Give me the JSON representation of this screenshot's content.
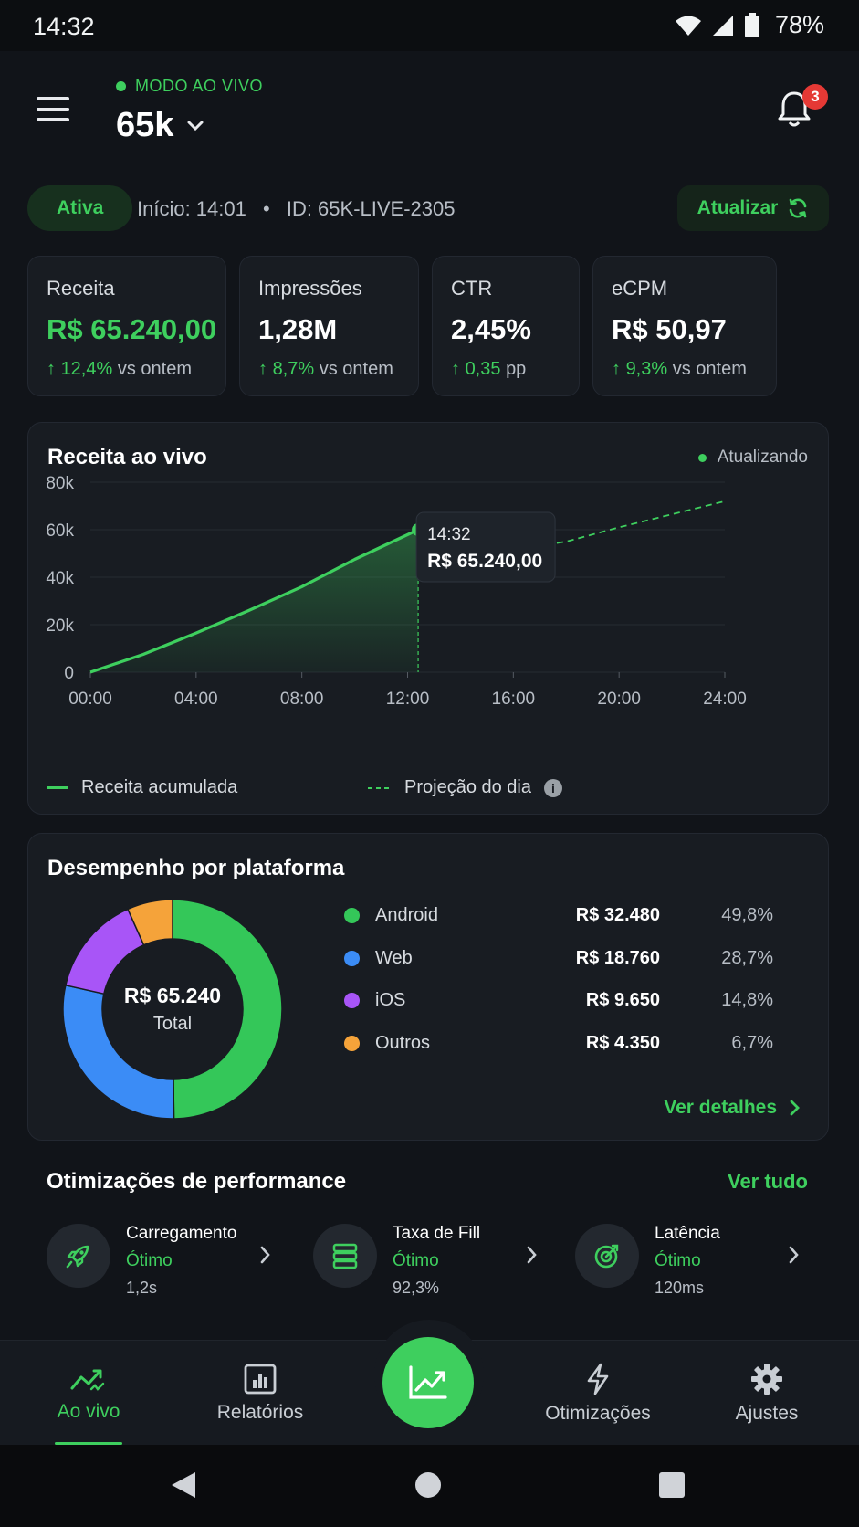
{
  "status_bar": {
    "time": "14:32",
    "battery": "78%"
  },
  "header": {
    "mode": "MODO AO VIVO",
    "title": "65k",
    "notifications": "3"
  },
  "session": {
    "status": "Ativa",
    "start": "Início: 14:01",
    "separator": "•",
    "id": "ID: 65K-LIVE-2305",
    "refresh": "Atualizar"
  },
  "kpis": [
    {
      "label": "Receita",
      "value": "R$ 65.240,00",
      "delta": "12,4%",
      "delta_suffix": "vs ontem"
    },
    {
      "label": "Impressões",
      "value": "1,28M",
      "delta": "8,7%",
      "delta_suffix": "vs ontem"
    },
    {
      "label": "CTR",
      "value": "2,45%",
      "delta": "0,35",
      "delta_suffix": "pp"
    },
    {
      "label": "eCPM",
      "value": "R$ 50,97",
      "delta": "9,3%",
      "delta_suffix": "vs ontem"
    }
  ],
  "live_chart": {
    "title": "Receita ao vivo",
    "status": "Atualizando",
    "tooltip": {
      "time": "14:32",
      "value": "R$ 65.240,00"
    },
    "legend_actual": "Receita acumulada",
    "legend_projection": "Projeção do dia"
  },
  "chart_data": {
    "type": "line",
    "y_ticks": [
      "0",
      "20k",
      "40k",
      "60k",
      "80k"
    ],
    "x_ticks": [
      "00:00",
      "04:00",
      "08:00",
      "12:00",
      "16:00",
      "20:00",
      "24:00"
    ],
    "ylim": [
      0,
      80000
    ],
    "xlim": [
      0,
      24
    ],
    "series": [
      {
        "name": "Receita acumulada",
        "x": [
          0,
          2,
          4,
          6,
          8,
          10,
          12.4
        ],
        "y": [
          0,
          7500,
          16500,
          26000,
          36000,
          47500,
          60000
        ]
      },
      {
        "name": "Projeção do dia",
        "x": [
          12.4,
          14,
          16,
          18,
          20,
          22,
          24
        ],
        "y": [
          60000,
          53000,
          51500,
          55000,
          61000,
          66500,
          72000
        ]
      }
    ],
    "colors": {
      "actual": "#3ecf5e",
      "projection": "#3ecf5e"
    }
  },
  "platforms": {
    "title": "Desempenho por plataforma",
    "total_value": "R$ 65.240",
    "total_label": "Total",
    "items": [
      {
        "name": "Android",
        "value": "R$ 32.480",
        "pct": "49,8%",
        "share": 49.8,
        "color": "#34c759"
      },
      {
        "name": "Web",
        "value": "R$ 18.760",
        "pct": "28,7%",
        "share": 28.7,
        "color": "#3b8cf6"
      },
      {
        "name": "iOS",
        "value": "R$ 9.650",
        "pct": "14,8%",
        "share": 14.8,
        "color": "#a855f7"
      },
      {
        "name": "Outros",
        "value": "R$ 4.350",
        "pct": "6,7%",
        "share": 6.7,
        "color": "#f5a33a"
      }
    ],
    "details": "Ver detalhes"
  },
  "optimizations": {
    "title": "Otimizações de performance",
    "see_all": "Ver tudo",
    "items": [
      {
        "name": "Carregamento",
        "status": "Ótimo",
        "metric": "1,2s",
        "icon": "rocket-icon"
      },
      {
        "name": "Taxa de Fill",
        "status": "Ótimo",
        "metric": "92,3%",
        "icon": "server-icon"
      },
      {
        "name": "Latência",
        "status": "Ótimo",
        "metric": "120ms",
        "icon": "target-icon"
      }
    ]
  },
  "bottom_nav": {
    "items": [
      {
        "label": "Ao vivo",
        "icon": "trend-icon"
      },
      {
        "label": "Relatórios",
        "icon": "bar-chart-icon"
      },
      {
        "label": "",
        "icon": "chart-up-icon"
      },
      {
        "label": "Otimizações",
        "icon": "lightning-icon"
      },
      {
        "label": "Ajustes",
        "icon": "gear-icon"
      }
    ]
  }
}
